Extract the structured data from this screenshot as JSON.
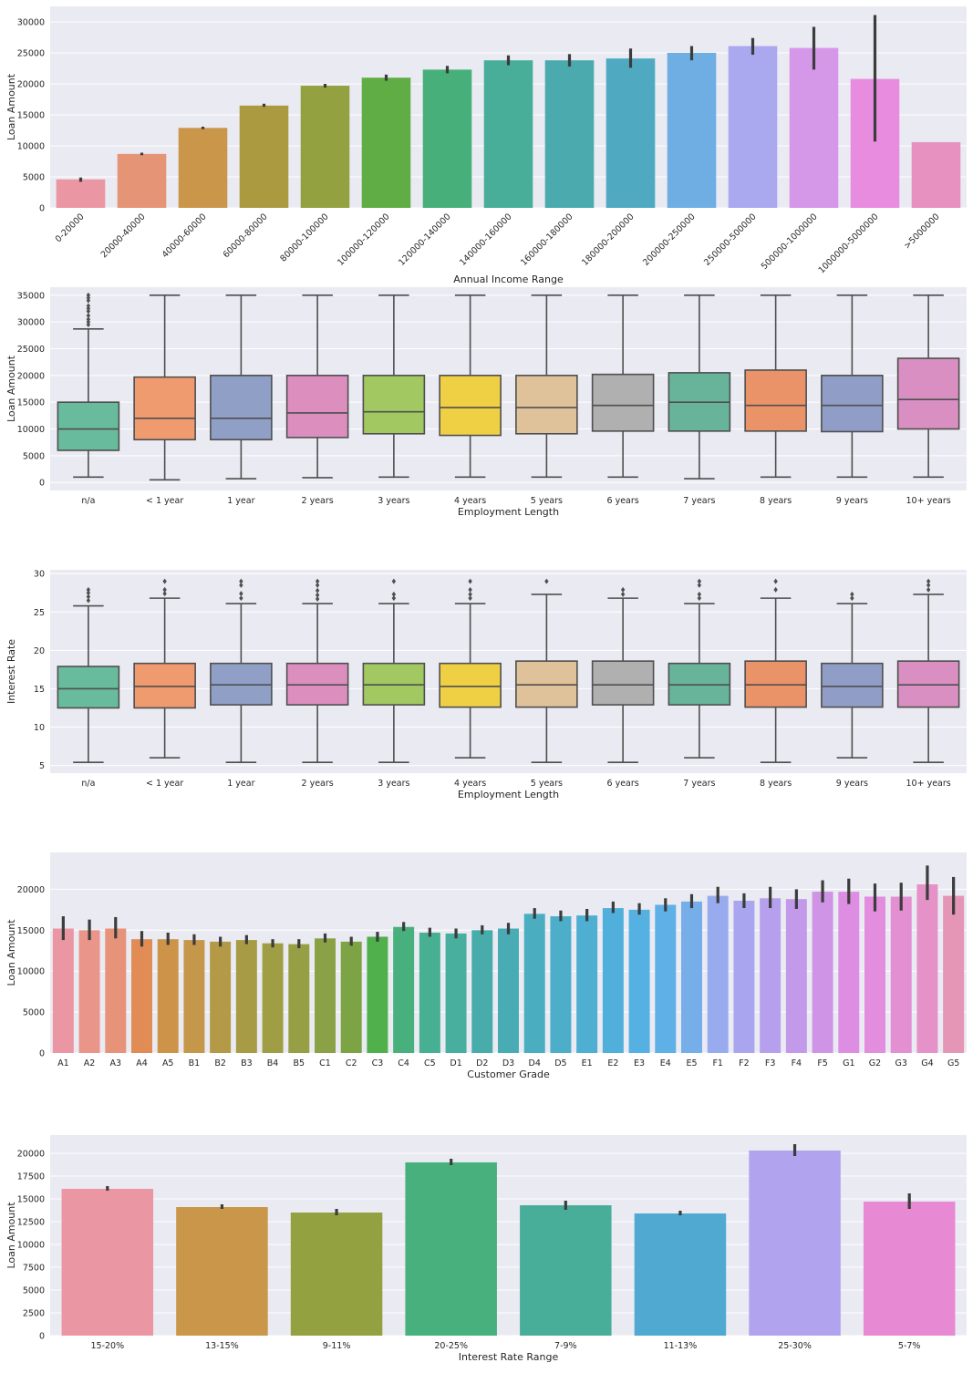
{
  "chart_data": [
    {
      "type": "bar",
      "xlabel": "Annual Income Range",
      "ylabel": "Loan Amount",
      "ylim": [
        0,
        32500
      ],
      "yticks": [
        0,
        5000,
        10000,
        15000,
        20000,
        25000,
        30000
      ],
      "categories": [
        "0-20000",
        "20000-40000",
        "40000-60000",
        "60000-80000",
        "80000-100000",
        "100000-120000",
        "120000-140000",
        "140000-160000",
        "160000-180000",
        "180000-200000",
        "200000-250000",
        "250000-500000",
        "500000-1000000",
        "1000000-5000000",
        ">5000000"
      ],
      "values": [
        4600,
        8700,
        12900,
        16500,
        19700,
        21000,
        22300,
        23800,
        23800,
        24100,
        25000,
        26100,
        25800,
        20800,
        10600
      ],
      "err_low": [
        4200,
        8500,
        12700,
        16300,
        19400,
        20500,
        21700,
        23000,
        22800,
        22600,
        23800,
        24700,
        22300,
        10700,
        10600
      ],
      "err_high": [
        4900,
        8900,
        13100,
        16800,
        20000,
        21500,
        22900,
        24600,
        24800,
        25700,
        26100,
        27400,
        29200,
        31100,
        10600
      ],
      "colors": [
        "#ea96a3",
        "#e59476",
        "#c9964a",
        "#ac9a40",
        "#93a140",
        "#60ad45",
        "#47b07a",
        "#48ae9a",
        "#4aaaad",
        "#4faac1",
        "#6eaee2",
        "#aaa8ef",
        "#d598e8",
        "#e88ce0",
        "#e791c0"
      ],
      "rotate_ticks": true
    },
    {
      "type": "box",
      "xlabel": "Employment Length",
      "ylabel": "Loan Amount",
      "ylim": [
        -1500,
        36500
      ],
      "yticks": [
        0,
        5000,
        10000,
        15000,
        20000,
        25000,
        30000,
        35000
      ],
      "categories": [
        "n/a",
        "< 1 year",
        "1 year",
        "2 years",
        "3 years",
        "4 years",
        "5 years",
        "6 years",
        "7 years",
        "8 years",
        "9 years",
        "10+ years"
      ],
      "boxes": [
        {
          "min": 1000,
          "q1": 6000,
          "median": 10000,
          "q3": 15000,
          "max": 28700,
          "outliers": [
            29500,
            30000,
            30500,
            31200,
            32000,
            32500,
            33000,
            34000,
            34500,
            35000
          ]
        },
        {
          "min": 500,
          "q1": 8000,
          "median": 12000,
          "q3": 19700,
          "max": 35000,
          "outliers": []
        },
        {
          "min": 700,
          "q1": 8000,
          "median": 12000,
          "q3": 20000,
          "max": 35000,
          "outliers": []
        },
        {
          "min": 900,
          "q1": 8400,
          "median": 13000,
          "q3": 20000,
          "max": 35000,
          "outliers": []
        },
        {
          "min": 1000,
          "q1": 9100,
          "median": 13200,
          "q3": 20000,
          "max": 35000,
          "outliers": []
        },
        {
          "min": 1000,
          "q1": 8800,
          "median": 14000,
          "q3": 20000,
          "max": 35000,
          "outliers": []
        },
        {
          "min": 1000,
          "q1": 9100,
          "median": 14000,
          "q3": 20000,
          "max": 35000,
          "outliers": []
        },
        {
          "min": 1000,
          "q1": 9600,
          "median": 14400,
          "q3": 20200,
          "max": 35000,
          "outliers": []
        },
        {
          "min": 700,
          "q1": 9600,
          "median": 15000,
          "q3": 20500,
          "max": 35000,
          "outliers": []
        },
        {
          "min": 1000,
          "q1": 9600,
          "median": 14400,
          "q3": 21000,
          "max": 35000,
          "outliers": []
        },
        {
          "min": 1000,
          "q1": 9500,
          "median": 14400,
          "q3": 20000,
          "max": 35000,
          "outliers": []
        },
        {
          "min": 1000,
          "q1": 10000,
          "median": 15500,
          "q3": 23200,
          "max": 35000,
          "outliers": []
        }
      ],
      "colors": [
        "#68bb9c",
        "#f09a70",
        "#909fc6",
        "#dc8fbf",
        "#a2c862",
        "#efd045",
        "#dfc29a",
        "#b0b0b0",
        "#68b49b",
        "#eb9368",
        "#909dc6",
        "#d98fc1"
      ]
    },
    {
      "type": "box",
      "xlabel": "Employment Length",
      "ylabel": "Interest Rate",
      "ylim": [
        4,
        30.5
      ],
      "yticks": [
        5,
        10,
        15,
        20,
        25,
        30
      ],
      "categories": [
        "n/a",
        "< 1 year",
        "1 year",
        "2 years",
        "3 years",
        "4 years",
        "5 years",
        "6 years",
        "7 years",
        "8 years",
        "9 years",
        "10+ years"
      ],
      "boxes": [
        {
          "min": 5.4,
          "q1": 12.5,
          "median": 15.0,
          "q3": 17.9,
          "max": 25.8,
          "outliers": [
            26.5,
            27.0,
            27.5,
            27.9
          ]
        },
        {
          "min": 6.0,
          "q1": 12.5,
          "median": 15.3,
          "q3": 18.3,
          "max": 26.8,
          "outliers": [
            27.4,
            27.9,
            29.0
          ]
        },
        {
          "min": 5.4,
          "q1": 12.9,
          "median": 15.5,
          "q3": 18.3,
          "max": 26.1,
          "outliers": [
            26.8,
            27.4,
            28.5,
            29.0
          ]
        },
        {
          "min": 5.4,
          "q1": 12.9,
          "median": 15.5,
          "q3": 18.3,
          "max": 26.1,
          "outliers": [
            26.7,
            27.2,
            27.8,
            28.5,
            29.0
          ]
        },
        {
          "min": 5.4,
          "q1": 12.9,
          "median": 15.5,
          "q3": 18.3,
          "max": 26.1,
          "outliers": [
            26.8,
            27.3,
            29.0
          ]
        },
        {
          "min": 6.0,
          "q1": 12.6,
          "median": 15.3,
          "q3": 18.3,
          "max": 26.1,
          "outliers": [
            26.8,
            27.3,
            27.9,
            29.0
          ]
        },
        {
          "min": 5.4,
          "q1": 12.6,
          "median": 15.5,
          "q3": 18.6,
          "max": 27.3,
          "outliers": [
            29.0
          ]
        },
        {
          "min": 5.4,
          "q1": 12.9,
          "median": 15.5,
          "q3": 18.6,
          "max": 26.8,
          "outliers": [
            27.3,
            27.9
          ]
        },
        {
          "min": 6.0,
          "q1": 12.9,
          "median": 15.5,
          "q3": 18.3,
          "max": 26.1,
          "outliers": [
            26.8,
            27.3,
            28.5,
            29.0
          ]
        },
        {
          "min": 5.4,
          "q1": 12.6,
          "median": 15.5,
          "q3": 18.6,
          "max": 26.8,
          "outliers": [
            27.9,
            29.0
          ]
        },
        {
          "min": 6.0,
          "q1": 12.6,
          "median": 15.3,
          "q3": 18.3,
          "max": 26.1,
          "outliers": [
            26.8,
            27.3
          ]
        },
        {
          "min": 5.4,
          "q1": 12.6,
          "median": 15.5,
          "q3": 18.6,
          "max": 27.3,
          "outliers": [
            27.9,
            28.5,
            29.0
          ]
        }
      ],
      "colors": [
        "#68bb9c",
        "#f09a70",
        "#909fc6",
        "#dc8fbf",
        "#a2c862",
        "#efd045",
        "#dfc29a",
        "#b0b0b0",
        "#68b49b",
        "#eb9368",
        "#909dc6",
        "#d98fc1"
      ]
    },
    {
      "type": "bar",
      "xlabel": "Customer Grade",
      "ylabel": "Loan Amount",
      "ylim": [
        0,
        24500
      ],
      "yticks": [
        0,
        5000,
        10000,
        15000,
        20000
      ],
      "categories": [
        "A1",
        "A2",
        "A3",
        "A4",
        "A5",
        "B1",
        "B2",
        "B3",
        "B4",
        "B5",
        "C1",
        "C2",
        "C3",
        "C4",
        "C5",
        "D1",
        "D2",
        "D3",
        "D4",
        "D5",
        "E1",
        "E2",
        "E3",
        "E4",
        "E5",
        "F1",
        "F2",
        "F3",
        "F4",
        "F5",
        "G1",
        "G2",
        "G3",
        "G4",
        "G5"
      ],
      "values": [
        15200,
        15000,
        15200,
        13900,
        13900,
        13800,
        13600,
        13800,
        13400,
        13300,
        14000,
        13600,
        14200,
        15400,
        14700,
        14600,
        15000,
        15200,
        17000,
        16700,
        16800,
        17700,
        17500,
        18100,
        18500,
        19200,
        18600,
        18900,
        18800,
        19700,
        19700,
        19100,
        19100,
        20600,
        19200
      ],
      "err_low": [
        13800,
        13800,
        14000,
        13000,
        13200,
        13200,
        13000,
        13300,
        12900,
        12800,
        13500,
        13100,
        13600,
        14900,
        14200,
        14000,
        14500,
        14500,
        16400,
        16100,
        16100,
        17100,
        16900,
        17300,
        17700,
        18300,
        17700,
        17700,
        17600,
        18400,
        18200,
        17300,
        17400,
        18700,
        16900
      ],
      "err_high": [
        16700,
        16300,
        16600,
        14900,
        14700,
        14500,
        14200,
        14400,
        13900,
        13900,
        14600,
        14200,
        14800,
        16000,
        15300,
        15200,
        15600,
        15900,
        17700,
        17400,
        17600,
        18500,
        18300,
        18900,
        19400,
        20300,
        19500,
        20300,
        20000,
        21100,
        21300,
        20700,
        20800,
        22900,
        21500
      ],
      "colors": [
        "#ea96a3",
        "#e9958a",
        "#e6937a",
        "#e18c55",
        "#cd9449",
        "#c5974a",
        "#b49a47",
        "#a89b46",
        "#9f9e44",
        "#979f45",
        "#8aa245",
        "#7da444",
        "#4fb04c",
        "#48b07c",
        "#47af92",
        "#48ae9e",
        "#48adaa",
        "#49acb4",
        "#4badc0",
        "#4caec9",
        "#4eafd2",
        "#51b0db",
        "#55b1e2",
        "#5eb0e6",
        "#75aee9",
        "#98abef",
        "#a9a6ef",
        "#b6a0ed",
        "#c39aea",
        "#d094e6",
        "#dd8ee3",
        "#e28ddd",
        "#e38fd2",
        "#e492c7",
        "#e595b6"
      ],
      "rotate_ticks": false
    },
    {
      "type": "bar",
      "xlabel": "Interest Rate Range",
      "ylabel": "Loan Amount",
      "ylim": [
        0,
        22000
      ],
      "yticks": [
        0,
        2500,
        5000,
        7500,
        10000,
        12500,
        15000,
        17500,
        20000
      ],
      "categories": [
        "15-20%",
        "13-15%",
        "9-11%",
        "20-25%",
        "7-9%",
        "11-13%",
        "25-30%",
        "5-7%"
      ],
      "values": [
        16100,
        14100,
        13500,
        19000,
        14300,
        13400,
        20300,
        14700
      ],
      "err_low": [
        15900,
        13900,
        13200,
        18700,
        13800,
        13200,
        19700,
        13900
      ],
      "err_high": [
        16400,
        14400,
        13900,
        19400,
        14800,
        13700,
        21000,
        15600
      ],
      "colors": [
        "#ea96a3",
        "#c9964a",
        "#93a140",
        "#48b07c",
        "#48ae9a",
        "#4fa9d0",
        "#b2a3ee",
        "#e88ad3"
      ],
      "rotate_ticks": false
    }
  ]
}
